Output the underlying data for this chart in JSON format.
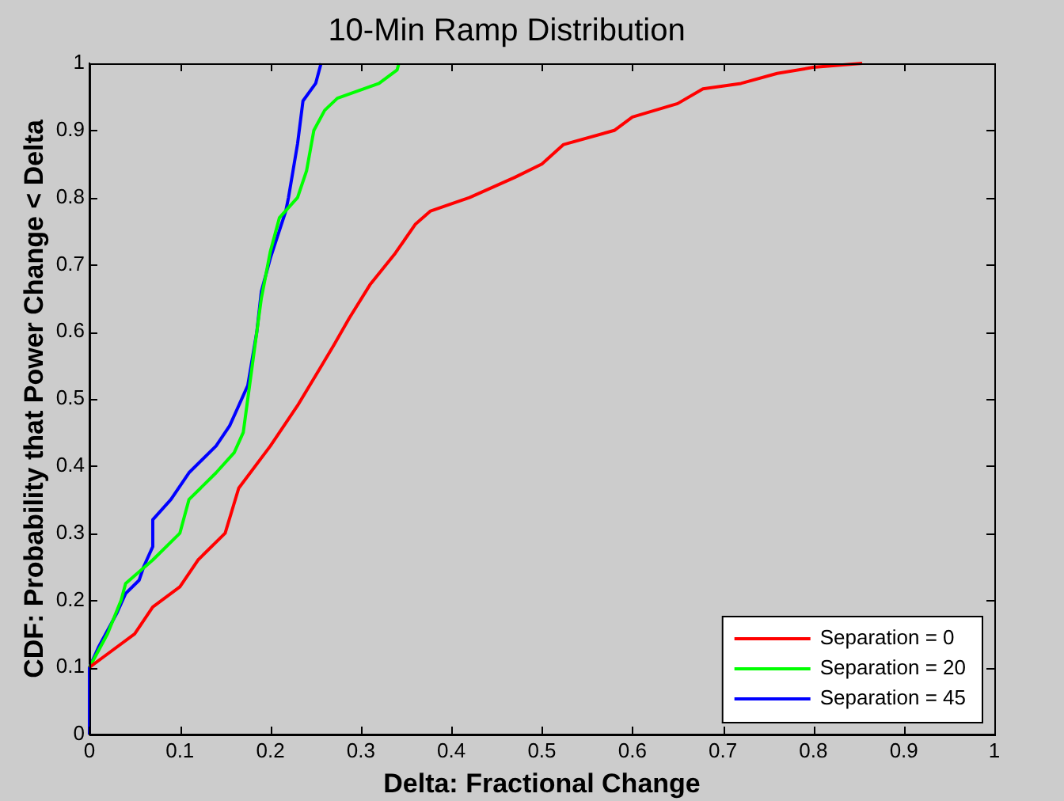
{
  "chart_data": {
    "type": "line",
    "title": "10-Min Ramp Distribution",
    "xlabel": "Delta: Fractional Change",
    "ylabel": "CDF: Probability that Power Change < Delta",
    "xlim": [
      0,
      1
    ],
    "xticks": [
      0,
      0.1,
      0.2,
      0.3,
      0.4,
      0.5,
      0.6,
      0.7,
      0.8,
      0.9,
      1
    ],
    "ylim": [
      0,
      1
    ],
    "yticks": [
      0,
      0.1,
      0.2,
      0.3,
      0.4,
      0.5,
      0.6,
      0.7,
      0.8,
      0.9,
      1
    ],
    "grid": false,
    "legend": "bottom right",
    "marker": "none",
    "line_style": "solid",
    "series": [
      {
        "name": "Separation = 0",
        "color": "#ff0000",
        "x": [
          0,
          0.02,
          0.05,
          0.07,
          0.1,
          0.12,
          0.15,
          0.165,
          0.2,
          0.23,
          0.255,
          0.27,
          0.287,
          0.31,
          0.338,
          0.36,
          0.377,
          0.42,
          0.47,
          0.5,
          0.524,
          0.58,
          0.6,
          0.65,
          0.678,
          0.72,
          0.76,
          0.8,
          0.854
        ],
        "values": [
          0.1,
          0.12,
          0.15,
          0.19,
          0.22,
          0.26,
          0.3,
          0.367,
          0.43,
          0.49,
          0.546,
          0.58,
          0.62,
          0.67,
          0.717,
          0.76,
          0.78,
          0.8,
          0.83,
          0.85,
          0.879,
          0.9,
          0.92,
          0.94,
          0.962,
          0.97,
          0.985,
          0.994,
          1
        ]
      },
      {
        "name": "Separation = 20",
        "color": "#00ff00",
        "x": [
          0,
          0.02,
          0.035,
          0.04,
          0.07,
          0.1,
          0.11,
          0.14,
          0.16,
          0.17,
          0.175,
          0.18,
          0.19,
          0.2,
          0.21,
          0.23,
          0.24,
          0.248,
          0.26,
          0.274,
          0.32,
          0.34,
          0.342
        ],
        "values": [
          0.1,
          0.15,
          0.2,
          0.225,
          0.26,
          0.3,
          0.35,
          0.39,
          0.42,
          0.45,
          0.5,
          0.55,
          0.65,
          0.72,
          0.77,
          0.8,
          0.84,
          0.9,
          0.93,
          0.948,
          0.97,
          0.99,
          1
        ]
      },
      {
        "name": "Separation = 45",
        "color": "#0000ff",
        "x": [
          0,
          0,
          0.01,
          0.03,
          0.04,
          0.055,
          0.06,
          0.07,
          0.07,
          0.09,
          0.11,
          0.14,
          0.155,
          0.165,
          0.175,
          0.185,
          0.19,
          0.2,
          0.217,
          0.22,
          0.23,
          0.236,
          0.25,
          0.256
        ],
        "values": [
          0,
          0.1,
          0.13,
          0.18,
          0.21,
          0.23,
          0.25,
          0.28,
          0.32,
          0.35,
          0.39,
          0.43,
          0.46,
          0.49,
          0.52,
          0.6,
          0.66,
          0.71,
          0.78,
          0.8,
          0.88,
          0.944,
          0.97,
          1
        ]
      }
    ]
  }
}
